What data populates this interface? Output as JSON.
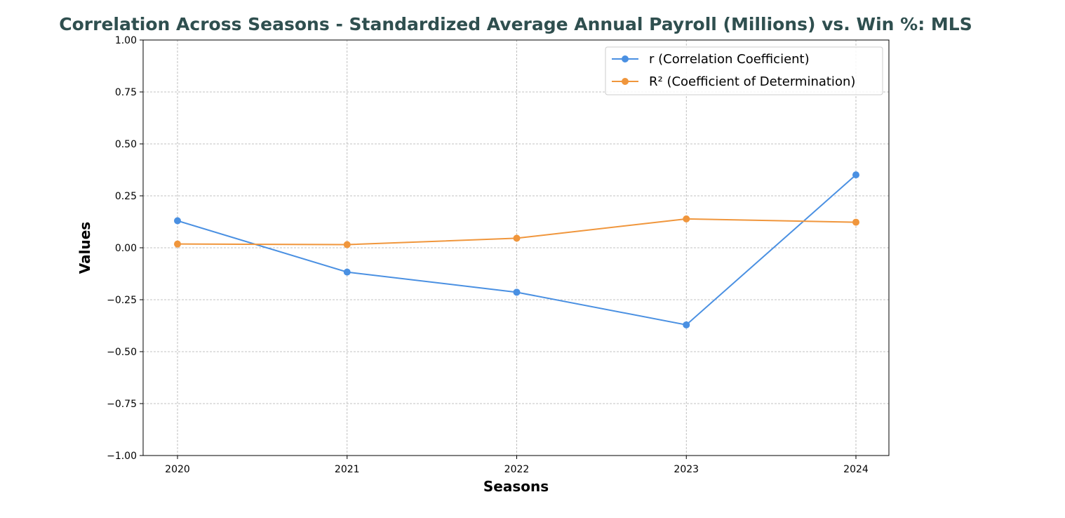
{
  "chart_data": {
    "type": "line",
    "title": "Correlation Across Seasons - Standardized Average Annual Payroll (Millions) vs. Win %: MLS",
    "xlabel": "Seasons",
    "ylabel": "Values",
    "categories": [
      "2020",
      "2021",
      "2022",
      "2023",
      "2024"
    ],
    "ylim": [
      -1.0,
      1.0
    ],
    "yticks": [
      -1.0,
      -0.75,
      -0.5,
      -0.25,
      0.0,
      0.25,
      0.5,
      0.75,
      1.0
    ],
    "ytick_labels": [
      "−1.00",
      "−0.75",
      "−0.50",
      "−0.25",
      "0.00",
      "0.25",
      "0.50",
      "0.75",
      "1.00"
    ],
    "grid": true,
    "legend_position": "top-right",
    "series": [
      {
        "name": "r (Correlation Coefficient)",
        "color": "#4a90e2",
        "values": [
          0.13,
          -0.117,
          -0.214,
          -0.371,
          0.351
        ]
      },
      {
        "name": "R² (Coefficient of Determination)",
        "color": "#f0963c",
        "values": [
          0.018,
          0.015,
          0.046,
          0.139,
          0.123
        ]
      }
    ]
  }
}
